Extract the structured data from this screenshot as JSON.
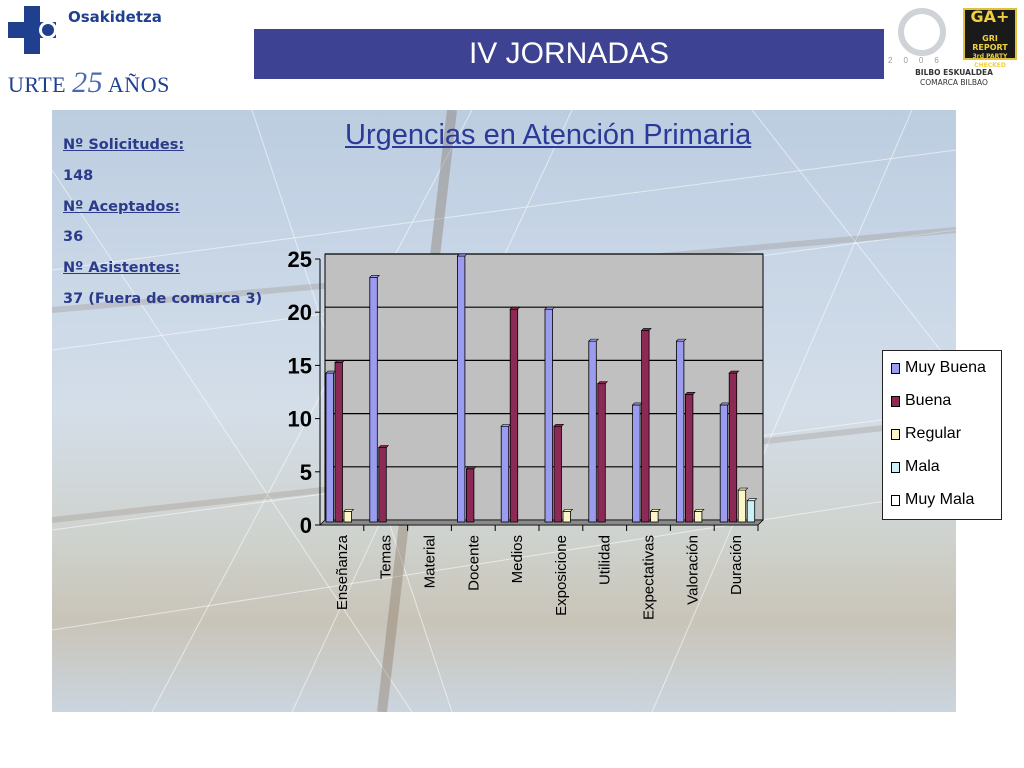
{
  "header": {
    "org_name": "Osakidetza",
    "anniversary_left": "URTE",
    "anniversary_number": "25",
    "anniversary_right": "AÑOS",
    "event_title": "IV JORNADAS",
    "badge_gri_top": "GA+",
    "badge_gri_line1": "GRI REPORT",
    "badge_gri_line2": "3rd PARTY CHECKED",
    "q_year": "2006",
    "region_line1": "BILBO ESKUALDEA",
    "region_line2": "COMARCA BILBAO"
  },
  "summary": {
    "requests_label": "Nº Solicitudes:",
    "requests_value": "148",
    "accepted_label": "Nº Aceptados:",
    "accepted_value": "36",
    "attendees_label": "Nº Asistentes:",
    "attendees_value": "37 (Fuera de comarca 3)"
  },
  "chart_data": {
    "type": "bar",
    "title": "Urgencias en Atención Primaria",
    "categories": [
      "Enseñanza",
      "Temas",
      "Material",
      "Docente",
      "Medios",
      "Exposicione",
      "Utilidad",
      "Expectativas",
      "Valoración",
      "Duración"
    ],
    "series": [
      {
        "name": "Muy Buena",
        "color": "#9b9bf0",
        "values": [
          14,
          23,
          0,
          25,
          9,
          20,
          17,
          11,
          17,
          11
        ]
      },
      {
        "name": "Buena",
        "color": "#8c2a55",
        "values": [
          15,
          7,
          0,
          5,
          20,
          9,
          13,
          18,
          12,
          14
        ]
      },
      {
        "name": "Regular",
        "color": "#fbf6c8",
        "values": [
          1,
          0,
          0,
          0,
          0,
          1,
          0,
          1,
          1,
          3
        ]
      },
      {
        "name": "Mala",
        "color": "#cdf0f4",
        "values": [
          0,
          0,
          0,
          0,
          0,
          0,
          0,
          0,
          0,
          2
        ]
      },
      {
        "name": "Muy Mala",
        "color": "#ffffff",
        "values": [
          0,
          0,
          0,
          0,
          0,
          0,
          0,
          0,
          0,
          0
        ]
      }
    ],
    "yticks": [
      "0",
      "5",
      "10",
      "15",
      "20",
      "25"
    ],
    "ylim": [
      0,
      25
    ],
    "grid": true,
    "plot_background": "#c0c0c0",
    "legend_position": "right"
  }
}
